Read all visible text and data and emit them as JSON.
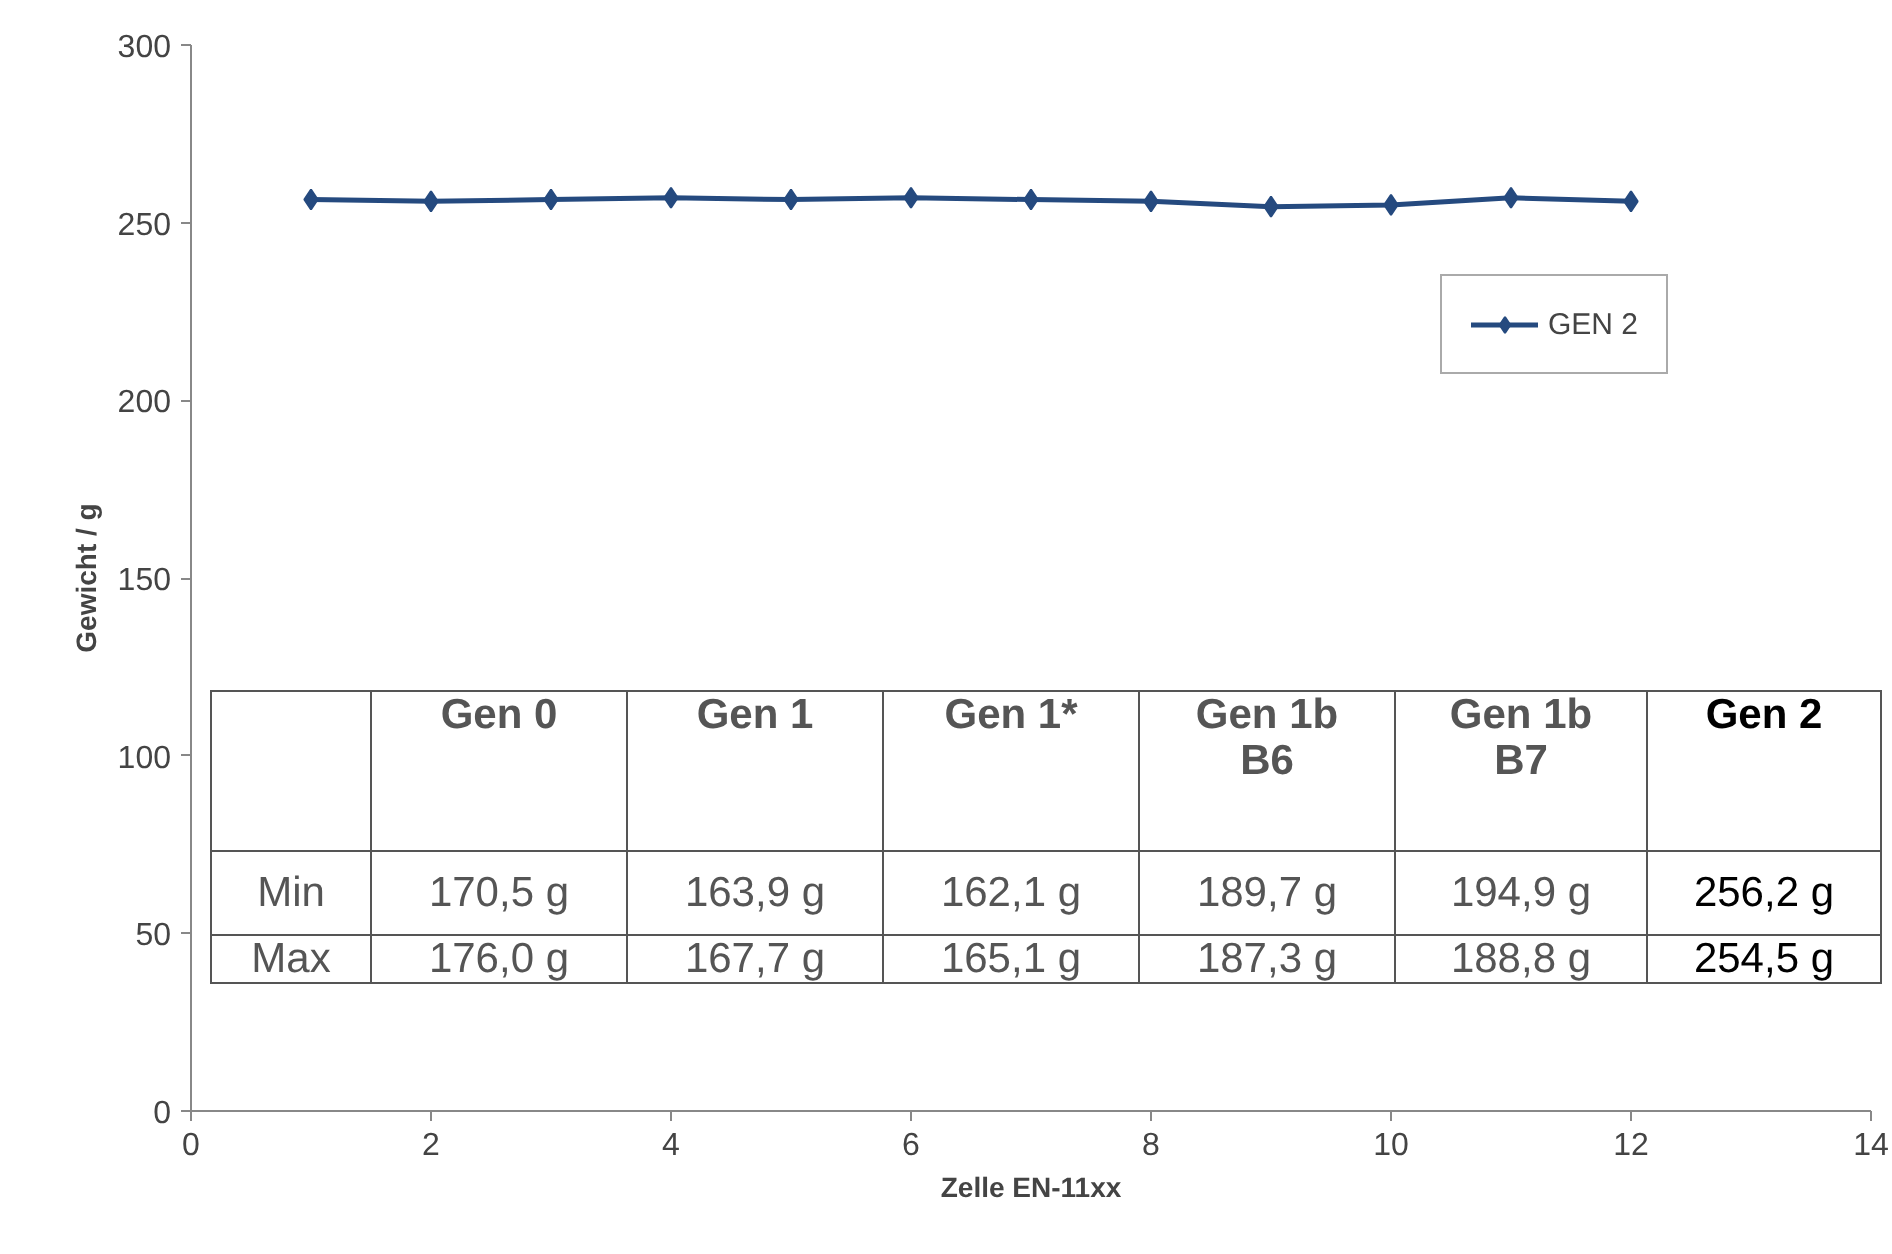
{
  "chart_data": {
    "type": "line",
    "xlabel": "Zelle EN-11xx",
    "ylabel": "Gewicht / g",
    "x": [
      1,
      2,
      3,
      4,
      5,
      6,
      7,
      8,
      9,
      10,
      11,
      12
    ],
    "series": [
      {
        "name": "GEN 2",
        "color": "#254a7f",
        "values": [
          256.5,
          256,
          256.5,
          257,
          256.5,
          257,
          256.5,
          256,
          254.5,
          255,
          257,
          256
        ]
      }
    ],
    "xlim": [
      0,
      14
    ],
    "xticks": [
      0,
      2,
      4,
      6,
      8,
      10,
      12,
      14
    ],
    "ylim": [
      0,
      300
    ],
    "yticks": [
      0,
      50,
      100,
      150,
      200,
      250,
      300
    ],
    "marker": "diamond",
    "line_style": "solid",
    "grid": false,
    "legend": "top right",
    "annotations": [
      "Gen 0",
      "Gen 1",
      "Gen 1*",
      "Gen 1b\nB6",
      "Gen 1b\nB7",
      "Gen 2",
      "Min",
      "170,5 g",
      "163,9 g",
      "162,1 g",
      "189,7 g",
      "194,9 g",
      "256,2 g",
      "Max",
      "176,0 g",
      "167,7 g",
      "165,1 g",
      "187,3 g",
      "188,8 g",
      "254,5 g"
    ]
  }
}
